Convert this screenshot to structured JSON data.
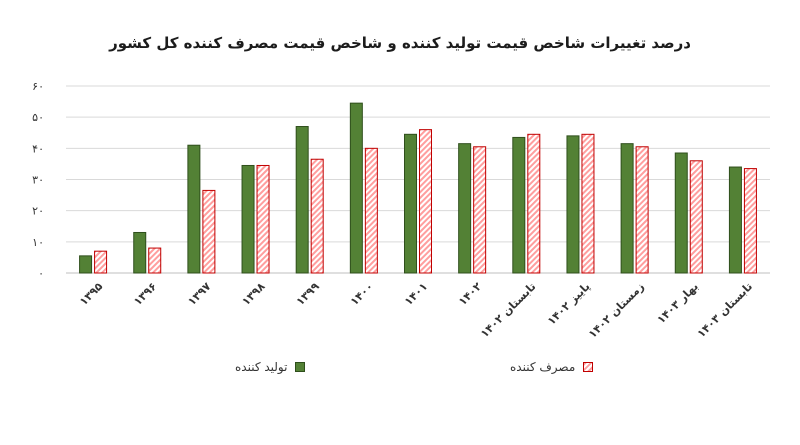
{
  "chart_data": {
    "type": "bar",
    "title": "درصد تغییرات شاخص قیمت تولید کننده و شاخص قیمت مصرف کننده کل کشور",
    "categories": [
      "۱۳۹۵",
      "۱۳۹۶",
      "۱۳۹۷",
      "۱۳۹۸",
      "۱۳۹۹",
      "۱۴۰۰",
      "۱۴۰۱",
      "۱۴۰۲",
      "تابستان ۱۴۰۲",
      "پاییز ۱۴۰۲",
      "زمستان ۱۴۰۲",
      "بهار ۱۴۰۳",
      "تابستان ۱۴۰۳"
    ],
    "series": [
      {
        "name": "تولید کننده",
        "values": [
          5.5,
          13,
          41,
          34.5,
          47,
          54.5,
          44.5,
          41.5,
          43.5,
          44,
          41.5,
          38.5,
          34
        ],
        "color": "#538135"
      },
      {
        "name": "مصرف کننده",
        "values": [
          7,
          8,
          26.5,
          34.5,
          36.5,
          40,
          46,
          40.5,
          44.5,
          44.5,
          40.5,
          36,
          33.5
        ],
        "color": "#ff9e9e"
      }
    ],
    "ylim": [
      0,
      60
    ],
    "yticks": [
      "۰",
      "۱۰",
      "۲۰",
      "۳۰",
      "۴۰",
      "۵۰",
      "۶۰"
    ],
    "grid": true,
    "legend_position": "bottom"
  }
}
